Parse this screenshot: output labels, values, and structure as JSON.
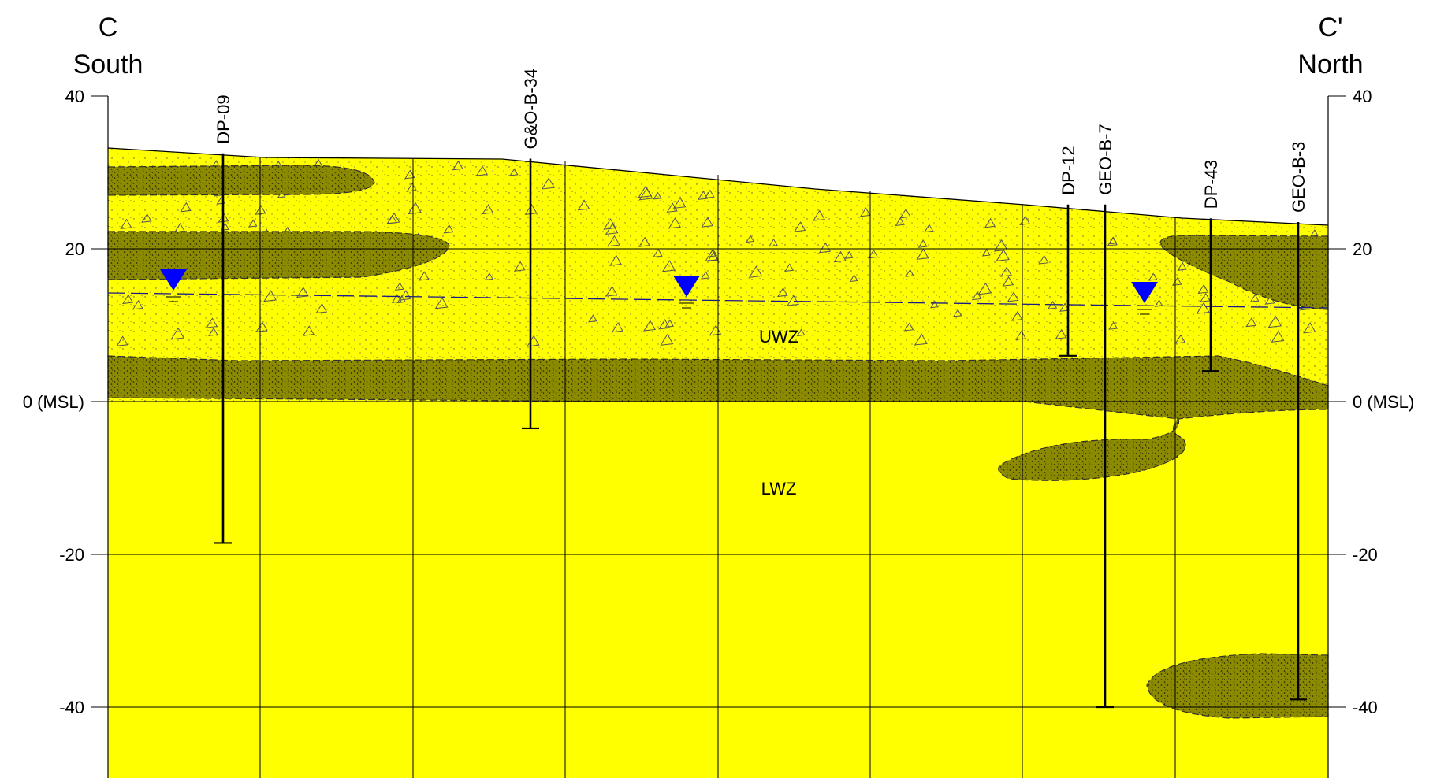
{
  "section": {
    "left_end": {
      "letter": "C",
      "direction": "South"
    },
    "right_end": {
      "letter": "C'",
      "direction": "North"
    }
  },
  "elevation_axis": {
    "ticks": [
      {
        "value": 40,
        "label": "40"
      },
      {
        "value": 20,
        "label": "20"
      },
      {
        "value": 0,
        "label": "0 (MSL)"
      },
      {
        "value": -20,
        "label": "-20"
      },
      {
        "value": -40,
        "label": "-40"
      }
    ],
    "range": [
      -50,
      40
    ]
  },
  "colors": {
    "unit_fill": "#ffff00",
    "silt_lens_fill": "#8b8a00",
    "water_table_symbol": "#0000ff",
    "water_table_line": "#1a1a8c"
  },
  "borings": [
    {
      "name": "DP-09",
      "top_elev": 32.5,
      "bottom_elev": -18.5
    },
    {
      "name": "G&O-B-34",
      "top_elev": 31.8,
      "bottom_elev": -3.5
    },
    {
      "name": "DP-12",
      "top_elev": 25.8,
      "bottom_elev": 6
    },
    {
      "name": "GEO-B-7",
      "top_elev": 25.8,
      "bottom_elev": -40
    },
    {
      "name": "DP-43",
      "top_elev": 24,
      "bottom_elev": 4
    },
    {
      "name": "GEO-B-3",
      "top_elev": 23.5,
      "bottom_elev": -39
    }
  ],
  "zones": [
    {
      "label": "UWZ"
    },
    {
      "label": "LWZ"
    }
  ],
  "water_table_symbols": [
    {
      "icon": "water-table-triangle-icon"
    },
    {
      "icon": "water-table-triangle-icon"
    },
    {
      "icon": "water-table-triangle-icon"
    }
  ]
}
